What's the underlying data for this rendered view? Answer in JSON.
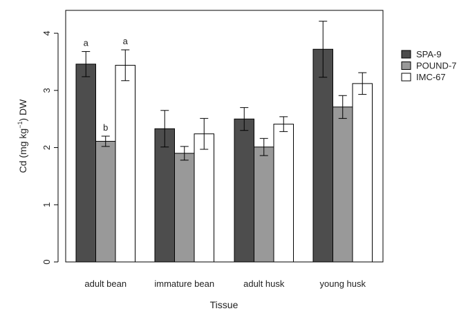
{
  "chart_data": {
    "type": "bar",
    "xlabel": "Tissue",
    "ylabel_parts": {
      "pre": "Cd (mg kg",
      "sup": "−1",
      "post": ") DW"
    },
    "categories": [
      "adult bean",
      "immature bean",
      "adult husk",
      "young husk"
    ],
    "ylim": [
      0,
      4.4
    ],
    "yticks": [
      0,
      1,
      2,
      3,
      4
    ],
    "legend_position": "right",
    "grid": false,
    "series": [
      {
        "name": "SPA-9",
        "color": "#4d4d4d",
        "values": [
          3.46,
          2.33,
          2.5,
          3.72
        ],
        "errors": [
          0.22,
          0.32,
          0.2,
          0.49
        ],
        "labels": [
          "a",
          "",
          "",
          ""
        ]
      },
      {
        "name": "POUND-7",
        "color": "#999999",
        "values": [
          2.11,
          1.9,
          2.01,
          2.71
        ],
        "errors": [
          0.09,
          0.12,
          0.15,
          0.2
        ],
        "labels": [
          "b",
          "",
          "",
          ""
        ]
      },
      {
        "name": "IMC-67",
        "color": "#ffffff",
        "values": [
          3.44,
          2.24,
          2.41,
          3.12
        ],
        "errors": [
          0.27,
          0.27,
          0.13,
          0.19
        ],
        "labels": [
          "a",
          "",
          "",
          ""
        ]
      }
    ]
  }
}
